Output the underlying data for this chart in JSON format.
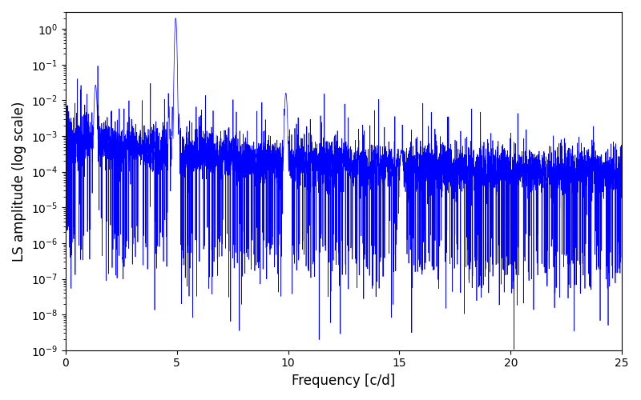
{
  "title": "",
  "xlabel": "Frequency [c/d]",
  "ylabel": "LS amplitude (log scale)",
  "xlim": [
    0,
    25
  ],
  "ylim": [
    1e-09,
    3
  ],
  "line_color": "#0000ff",
  "line_width": 0.5,
  "background_color": "#ffffff",
  "seed": 12345,
  "n_points": 5000,
  "freq_max": 25.0,
  "peak1_freq": 4.95,
  "peak1_amp": 1.0,
  "peak2_freq": 1.35,
  "peak2_amp": 0.007,
  "peak3_freq": 9.9,
  "peak3_amp": 0.012,
  "peak4_freq": 15.1,
  "peak4_amp": 0.00035,
  "base_level_low": 5e-05,
  "base_level_high": 0.0002,
  "figsize": [
    8.0,
    5.0
  ],
  "dpi": 100
}
